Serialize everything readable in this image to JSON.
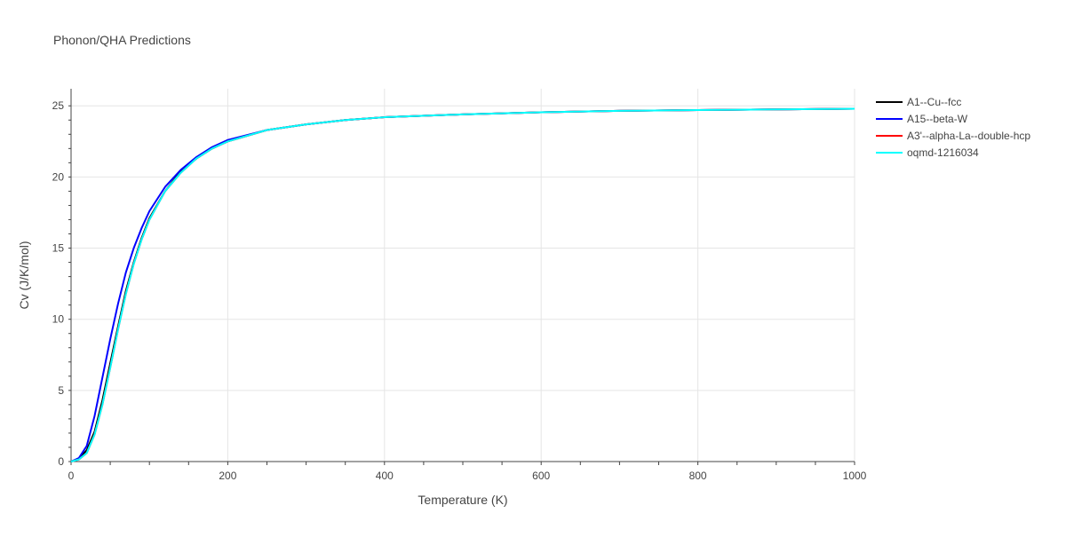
{
  "chart_data": {
    "type": "line",
    "title": "Phonon/QHA Predictions",
    "xlabel": "Temperature (K)",
    "ylabel": "Cv (J/K/mol)",
    "xlim": [
      0,
      1000
    ],
    "ylim": [
      0,
      26.2
    ],
    "x_ticks": [
      0,
      200,
      400,
      600,
      800,
      1000
    ],
    "y_ticks": [
      0,
      5,
      10,
      15,
      20,
      25
    ],
    "grid": true,
    "legend_position": "top-right",
    "series": [
      {
        "name": "A1--Cu--fcc",
        "color": "#000000",
        "x": [
          0,
          10,
          20,
          30,
          40,
          50,
          60,
          70,
          80,
          90,
          100,
          120,
          140,
          160,
          180,
          200,
          250,
          300,
          350,
          400,
          500,
          600,
          700,
          800,
          900,
          1000
        ],
        "y": [
          0,
          0.2,
          0.8,
          2.1,
          4.3,
          6.9,
          9.5,
          12.0,
          14.0,
          15.7,
          17.1,
          19.0,
          20.4,
          21.3,
          22.0,
          22.5,
          23.3,
          23.7,
          24.0,
          24.2,
          24.4,
          24.55,
          24.65,
          24.7,
          24.75,
          24.8
        ]
      },
      {
        "name": "A15--beta-W",
        "color": "#0000ff",
        "x": [
          0,
          10,
          20,
          30,
          40,
          50,
          60,
          70,
          80,
          90,
          100,
          120,
          140,
          160,
          180,
          200,
          250,
          300,
          350,
          400,
          500,
          600,
          700,
          800,
          900,
          1000
        ],
        "y": [
          0,
          0.25,
          1.1,
          3.2,
          5.9,
          8.6,
          11.1,
          13.3,
          15.0,
          16.4,
          17.6,
          19.3,
          20.5,
          21.4,
          22.1,
          22.6,
          23.3,
          23.7,
          24.0,
          24.2,
          24.4,
          24.55,
          24.65,
          24.7,
          24.75,
          24.8
        ]
      },
      {
        "name": "A3'--alpha-La--double-hcp",
        "color": "#ff0000",
        "x": [
          0,
          10,
          20,
          30,
          40,
          50,
          60,
          70,
          80,
          90,
          100,
          120,
          140,
          160,
          180,
          200,
          250,
          300,
          350,
          400,
          500,
          600,
          700,
          800,
          900,
          1000
        ],
        "y": [
          0,
          0.15,
          0.6,
          1.9,
          4.0,
          6.6,
          9.3,
          11.8,
          13.9,
          15.6,
          17.0,
          19.0,
          20.3,
          21.3,
          22.0,
          22.5,
          23.3,
          23.7,
          24.0,
          24.2,
          24.4,
          24.55,
          24.65,
          24.7,
          24.75,
          24.8
        ]
      },
      {
        "name": "oqmd-1216034",
        "color": "#00ffff",
        "x": [
          0,
          10,
          20,
          30,
          40,
          50,
          60,
          70,
          80,
          90,
          100,
          120,
          140,
          160,
          180,
          200,
          250,
          300,
          350,
          400,
          500,
          600,
          700,
          800,
          900,
          1000
        ],
        "y": [
          0,
          0.15,
          0.6,
          1.9,
          4.0,
          6.6,
          9.3,
          11.8,
          13.9,
          15.6,
          17.0,
          19.0,
          20.3,
          21.3,
          22.0,
          22.5,
          23.3,
          23.7,
          24.0,
          24.2,
          24.4,
          24.55,
          24.65,
          24.7,
          24.75,
          24.8
        ]
      }
    ]
  }
}
